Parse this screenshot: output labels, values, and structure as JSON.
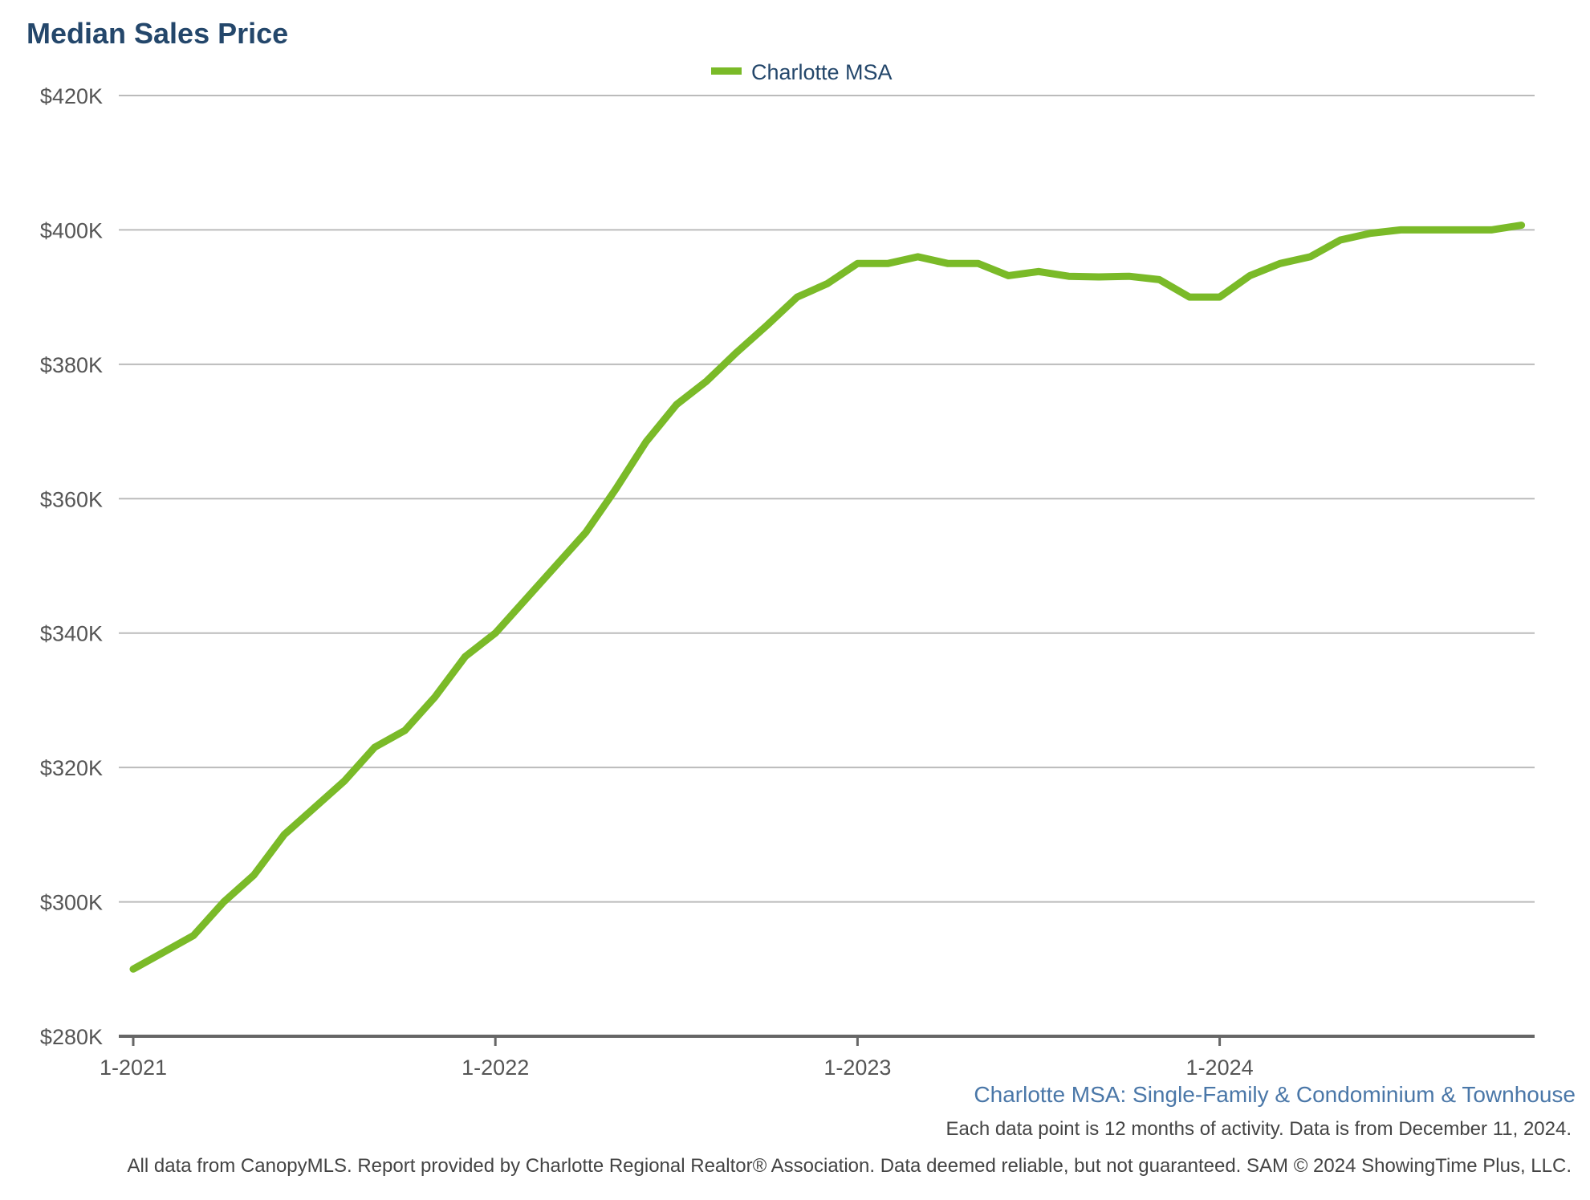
{
  "chart_data": {
    "type": "line",
    "title": "Median Sales Price",
    "legend": {
      "position": "top-center",
      "entries": [
        "Charlotte MSA"
      ]
    },
    "colors": {
      "series": "#7aba28",
      "title": "#24476b",
      "subtitle": "#4a77a8",
      "grid": "#bbbbbb",
      "axis": "#666666"
    },
    "grid": true,
    "ylim": [
      280000,
      420000
    ],
    "y_ticks": [
      {
        "value": 420000,
        "label": "$420K"
      },
      {
        "value": 400000,
        "label": "$400K"
      },
      {
        "value": 380000,
        "label": "$380K"
      },
      {
        "value": 360000,
        "label": "$360K"
      },
      {
        "value": 340000,
        "label": "$340K"
      },
      {
        "value": 320000,
        "label": "$320K"
      },
      {
        "value": 300000,
        "label": "$300K"
      },
      {
        "value": 280000,
        "label": "$280K"
      }
    ],
    "x_tick_labels": [
      "1-2021",
      "1-2022",
      "1-2023",
      "1-2024"
    ],
    "x": [
      "1-2021",
      "2-2021",
      "3-2021",
      "4-2021",
      "5-2021",
      "6-2021",
      "7-2021",
      "8-2021",
      "9-2021",
      "10-2021",
      "11-2021",
      "12-2021",
      "1-2022",
      "2-2022",
      "3-2022",
      "4-2022",
      "5-2022",
      "6-2022",
      "7-2022",
      "8-2022",
      "9-2022",
      "10-2022",
      "11-2022",
      "12-2022",
      "1-2023",
      "2-2023",
      "3-2023",
      "4-2023",
      "5-2023",
      "6-2023",
      "7-2023",
      "8-2023",
      "9-2023",
      "10-2023",
      "11-2023",
      "12-2023",
      "1-2024",
      "2-2024",
      "3-2024",
      "4-2024",
      "5-2024",
      "6-2024",
      "7-2024",
      "8-2024",
      "9-2024",
      "10-2024",
      "11-2024"
    ],
    "series": [
      {
        "name": "Charlotte MSA",
        "values": [
          290000,
          292500,
          295000,
          300000,
          304000,
          310000,
          314000,
          318000,
          323000,
          325500,
          330500,
          336500,
          340000,
          345000,
          350000,
          355000,
          361500,
          368500,
          374000,
          377500,
          381800,
          385800,
          390000,
          392000,
          395000,
          395000,
          396000,
          395000,
          395000,
          393200,
          393800,
          393100,
          393000,
          393100,
          392600,
          390000,
          390000,
          393200,
          395000,
          396000,
          398500,
          399500,
          400000,
          400000,
          400000,
          400000,
          400700
        ]
      }
    ],
    "subtitle": "Charlotte MSA: Single-Family & Condominium & Townhouse",
    "note": "Each data point is 12 months of activity. Data is from December 11, 2024.",
    "footer": "All data from CanopyMLS. Report provided by Charlotte Regional Realtor® Association. Data deemed reliable, but not guaranteed. SAM © 2024 ShowingTime Plus, LLC."
  }
}
